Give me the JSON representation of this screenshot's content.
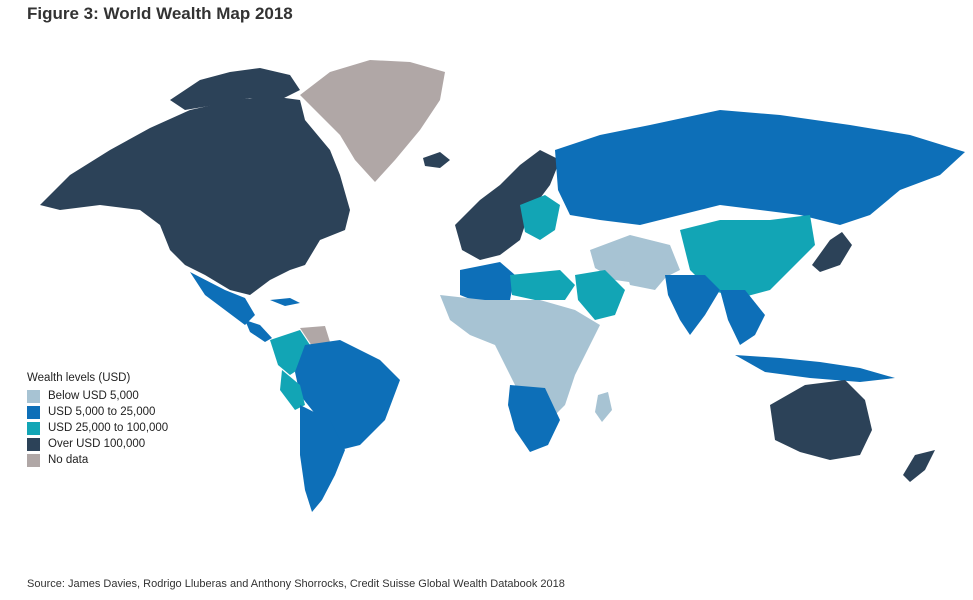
{
  "title": "Figure 3: World Wealth Map 2018",
  "legend": {
    "title": "Wealth levels (USD)",
    "items": [
      {
        "label": "Below USD 5,000",
        "color": "#a7c3d3"
      },
      {
        "label": "USD 5,000 to 25,000",
        "color": "#0d6fb8"
      },
      {
        "label": "USD 25,000 to 100,000",
        "color": "#12a5b5"
      },
      {
        "label": "Over USD 100,000",
        "color": "#2c4258"
      },
      {
        "label": "No data",
        "color": "#b0a7a6"
      }
    ]
  },
  "source": "Source: James Davies, Rodrigo Lluberas and Anthony Shorrocks, Credit Suisse Global Wealth Databook 2018"
}
